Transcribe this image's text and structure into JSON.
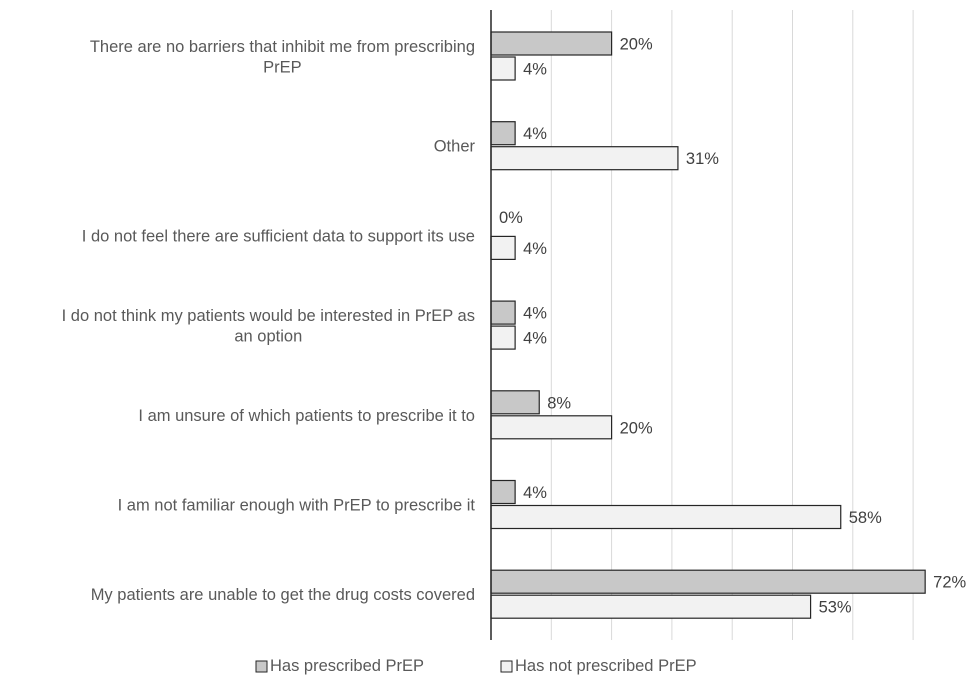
{
  "chart_data": {
    "type": "bar",
    "orientation": "horizontal",
    "categories": [
      [
        "There are no barriers that inhibit me from prescribing",
        "PrEP"
      ],
      [
        "Other"
      ],
      [
        "I do not feel there are sufficient data to support its use"
      ],
      [
        "I do not think my patients would be interested in PrEP as",
        "an option"
      ],
      [
        "I am unsure of which patients to prescribe it to"
      ],
      [
        "I am not familiar enough with PrEP to prescribe it"
      ],
      [
        "My patients are unable to get the drug costs covered"
      ]
    ],
    "series": [
      {
        "name": "Has prescribed PrEP",
        "values": [
          20,
          4,
          0,
          4,
          8,
          4,
          72
        ],
        "labels": [
          "20%",
          "4%",
          "0%",
          "4%",
          "8%",
          "4%",
          "72%"
        ],
        "color": "#c8c8c8"
      },
      {
        "name": "Has not prescribed PrEP",
        "values": [
          4,
          31,
          4,
          4,
          20,
          58,
          53
        ],
        "labels": [
          "4%",
          "31%",
          "4%",
          "4%",
          "20%",
          "58%",
          "53%"
        ],
        "color": "#f2f2f2"
      }
    ],
    "xlim": [
      0,
      70
    ],
    "x_gridlines": [
      10,
      20,
      30,
      40,
      50,
      60,
      70
    ],
    "grid": true,
    "legend_position": "bottom"
  },
  "colors": {
    "outline": "#262626",
    "gridline": "#d9d9d9",
    "text": "#595959",
    "label_text": "#404040"
  }
}
